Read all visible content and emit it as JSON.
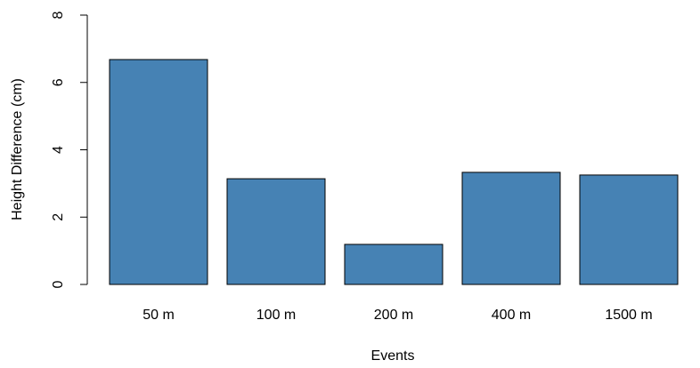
{
  "chart_data": {
    "type": "bar",
    "x_label": "Events",
    "y_label": "Height Difference (cm)",
    "categories": [
      "50 m",
      "100 m",
      "200 m",
      "400 m",
      "1500 m"
    ],
    "values": [
      6.68,
      3.14,
      1.19,
      3.33,
      3.25
    ],
    "color": "#4682b4",
    "ylim": [
      0,
      8
    ],
    "yticks": [
      0,
      2,
      4,
      6,
      8
    ]
  }
}
